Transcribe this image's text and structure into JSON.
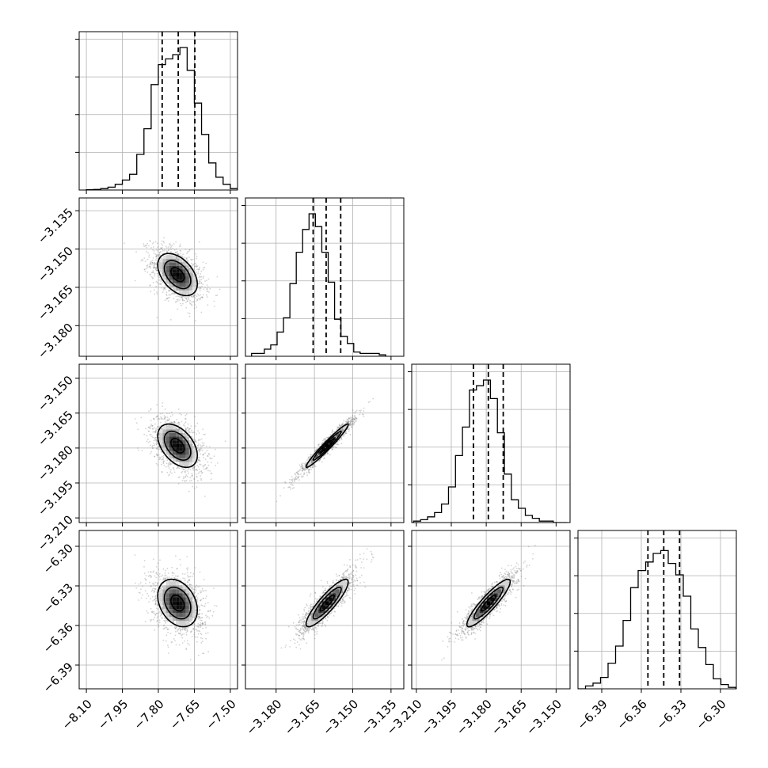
{
  "chart_data": {
    "type": "corner",
    "title": "",
    "quantiles": [
      0.16,
      0.5,
      0.84
    ],
    "contour_levels": 3,
    "colors": {
      "axes": "#000000",
      "grid": "#b0b0b0",
      "samples": "#808080",
      "histogram": "#000000",
      "quantile_line": "#000000"
    },
    "grid": true,
    "parameters": [
      {
        "label": "",
        "range": [
          -8.13,
          -7.47
        ],
        "ticks": [
          -8.1,
          -7.95,
          -7.8,
          -7.65,
          -7.5
        ],
        "tick_labels": [
          "−8.10",
          "−7.95",
          "−7.80",
          "−7.65",
          "−7.50"
        ],
        "mean": -7.72,
        "sd": 0.055,
        "quantile_values": [
          -7.784,
          -7.717,
          -7.648
        ],
        "histogram": {
          "edges": [
            -8.1,
            -8.07,
            -8.04,
            -8.01,
            -7.98,
            -7.95,
            -7.92,
            -7.89,
            -7.86,
            -7.83,
            -7.8,
            -7.77,
            -7.74,
            -7.71,
            -7.68,
            -7.65,
            -7.62,
            -7.59,
            -7.56,
            -7.53,
            -7.5,
            -7.47
          ],
          "heights": [
            0.002,
            0.004,
            0.01,
            0.02,
            0.04,
            0.07,
            0.11,
            0.25,
            0.43,
            0.74,
            0.88,
            0.92,
            0.95,
            1.0,
            0.84,
            0.61,
            0.39,
            0.19,
            0.09,
            0.04,
            0.01
          ]
        }
      },
      {
        "label": "",
        "range": [
          -3.192,
          -3.13
        ],
        "ticks": [
          -3.18,
          -3.165,
          -3.15,
          -3.135
        ],
        "tick_labels": [
          "−3.180",
          "−3.165",
          "−3.150",
          "−3.135"
        ],
        "mean": -3.16,
        "sd": 0.0055,
        "quantile_values": [
          -3.1655,
          -3.1604,
          -3.1547
        ],
        "histogram": {
          "edges": [
            -3.1896,
            -3.1871,
            -3.1846,
            -3.1821,
            -3.1796,
            -3.1771,
            -3.1746,
            -3.1721,
            -3.1696,
            -3.1671,
            -3.1646,
            -3.1621,
            -3.1596,
            -3.1571,
            -3.1546,
            -3.1521,
            -3.1496,
            -3.1471,
            -3.1446,
            -3.1421,
            -3.1396,
            -3.1371
          ],
          "heights": [
            0.02,
            0.02,
            0.05,
            0.08,
            0.17,
            0.27,
            0.51,
            0.73,
            0.89,
            1.0,
            0.91,
            0.73,
            0.52,
            0.26,
            0.14,
            0.09,
            0.03,
            0.02,
            0.02,
            0.02,
            0.01
          ]
        }
      },
      {
        "label": "",
        "range": [
          -3.212,
          -3.144
        ],
        "ticks": [
          -3.21,
          -3.195,
          -3.18,
          -3.165,
          -3.15
        ],
        "tick_labels": [
          "−3.210",
          "−3.195",
          "−3.180",
          "−3.165",
          "−3.150"
        ],
        "mean": -3.179,
        "sd": 0.0062,
        "quantile_values": [
          -3.1855,
          -3.1791,
          -3.1727
        ],
        "histogram": {
          "edges": [
            -3.2112,
            -3.2082,
            -3.2052,
            -3.2022,
            -3.1992,
            -3.1962,
            -3.1932,
            -3.1902,
            -3.1872,
            -3.1842,
            -3.1812,
            -3.1782,
            -3.1752,
            -3.1722,
            -3.1692,
            -3.1662,
            -3.1632,
            -3.1602,
            -3.1572,
            -3.1542,
            -3.1512,
            -3.1482,
            -3.1452
          ],
          "heights": [
            0.01,
            0.02,
            0.04,
            0.07,
            0.13,
            0.25,
            0.47,
            0.67,
            0.93,
            0.96,
            1.0,
            0.87,
            0.63,
            0.34,
            0.16,
            0.1,
            0.05,
            0.03,
            0.01,
            0.01,
            0.0,
            0.0
          ]
        }
      },
      {
        "label": "",
        "range": [
          -6.408,
          -6.288
        ],
        "ticks": [
          -6.39,
          -6.36,
          -6.33,
          -6.3
        ],
        "tick_labels": [
          "−6.39",
          "−6.36",
          "−6.33",
          "−6.30"
        ],
        "mean": -6.343,
        "sd": 0.012,
        "quantile_values": [
          -6.355,
          -6.343,
          -6.331
        ],
        "histogram": {
          "edges": [
            -6.408,
            -6.4023,
            -6.3966,
            -6.3909,
            -6.3852,
            -6.3795,
            -6.3738,
            -6.3681,
            -6.3624,
            -6.3567,
            -6.351,
            -6.3453,
            -6.3396,
            -6.3339,
            -6.3282,
            -6.3225,
            -6.3168,
            -6.3111,
            -6.3054,
            -6.2997,
            -6.294,
            -6.2883
          ],
          "heights": [
            0.0,
            0.02,
            0.04,
            0.08,
            0.18,
            0.3,
            0.48,
            0.71,
            0.83,
            0.89,
            0.95,
            0.97,
            0.88,
            0.8,
            0.65,
            0.42,
            0.29,
            0.17,
            0.07,
            0.03,
            0.01
          ]
        }
      }
    ],
    "correlations": [
      {
        "x": 0,
        "y": 1,
        "r": -0.45
      },
      {
        "x": 0,
        "y": 2,
        "r": -0.45
      },
      {
        "x": 1,
        "y": 2,
        "r": 0.97
      },
      {
        "x": 0,
        "y": 3,
        "r": -0.3
      },
      {
        "x": 1,
        "y": 3,
        "r": 0.88
      },
      {
        "x": 2,
        "y": 3,
        "r": 0.9
      }
    ]
  }
}
